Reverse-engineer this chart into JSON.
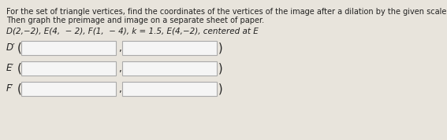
{
  "line1": "For the set of triangle vertices, find the coordinates of the vertices of the image after a dilation by the given scale factor and center of dilation.",
  "line2": "Then graph the preimage and image on a separate sheet of paper.",
  "problem": "D(2,−2), E(4,  − 2), F(1,  − 4), k = 1.5, E(4,−2), centered at E",
  "labels": [
    "D′",
    "E′",
    "F′"
  ],
  "box_fill": "#f5f5f5",
  "box_edge": "#aaaaaa",
  "text_color": "#222222",
  "fig_bg": "#e8e4dc"
}
